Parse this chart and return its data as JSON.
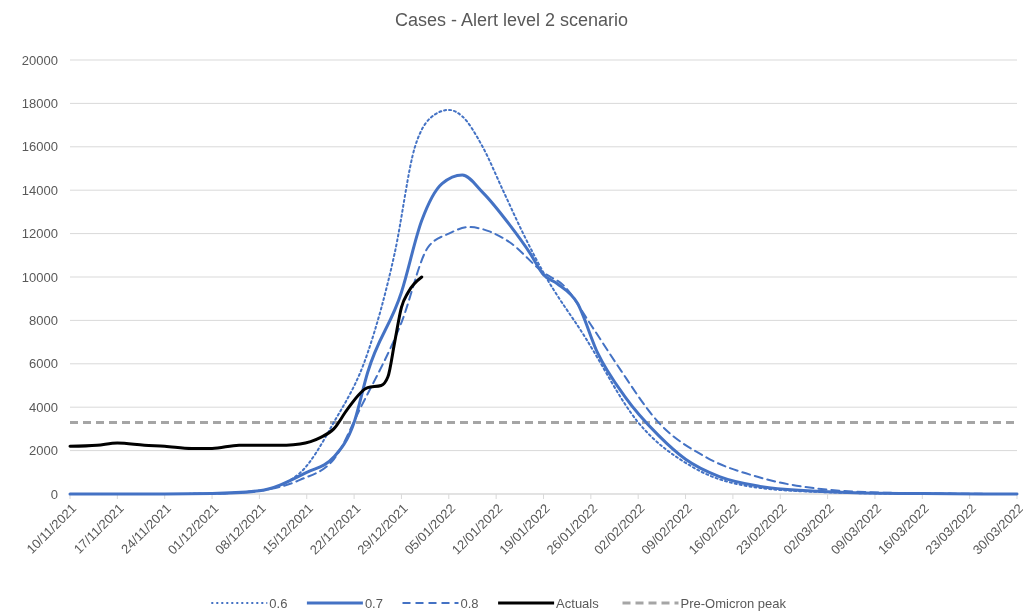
{
  "chart_data": {
    "type": "line",
    "title": "Cases - Alert level 2 scenario",
    "xlim": [
      "2021-11-10",
      "2022-03-30"
    ],
    "xticks": [
      {
        "value": "2021-11-10",
        "label": "10/11/2021"
      },
      {
        "value": "2021-11-17",
        "label": "17/11/2021"
      },
      {
        "value": "2021-11-24",
        "label": "24/11/2021"
      },
      {
        "value": "2021-12-01",
        "label": "01/12/2021"
      },
      {
        "value": "2021-12-08",
        "label": "08/12/2021"
      },
      {
        "value": "2021-12-15",
        "label": "15/12/2021"
      },
      {
        "value": "2021-12-22",
        "label": "22/12/2021"
      },
      {
        "value": "2021-12-29",
        "label": "29/12/2021"
      },
      {
        "value": "2022-01-05",
        "label": "05/01/2022"
      },
      {
        "value": "2022-01-12",
        "label": "12/01/2022"
      },
      {
        "value": "2022-01-19",
        "label": "19/01/2022"
      },
      {
        "value": "2022-01-26",
        "label": "26/01/2022"
      },
      {
        "value": "2022-02-02",
        "label": "02/02/2022"
      },
      {
        "value": "2022-02-09",
        "label": "09/02/2022"
      },
      {
        "value": "2022-02-16",
        "label": "16/02/2022"
      },
      {
        "value": "2022-02-23",
        "label": "23/02/2022"
      },
      {
        "value": "2022-03-02",
        "label": "02/03/2022"
      },
      {
        "value": "2022-03-09",
        "label": "09/03/2022"
      },
      {
        "value": "2022-03-16",
        "label": "16/03/2022"
      },
      {
        "value": "2022-03-23",
        "label": "23/03/2022"
      },
      {
        "value": "2022-03-30",
        "label": "30/03/2022"
      }
    ],
    "ylim": [
      0,
      20000
    ],
    "yticks": [
      0,
      2000,
      4000,
      6000,
      8000,
      10000,
      12000,
      14000,
      16000,
      18000,
      20000
    ],
    "grid": "y",
    "legend": "bottom",
    "series": [
      {
        "name": "0.6",
        "color": "#4472c4",
        "line_style": "dotted",
        "x": [
          "2021-11-12",
          "2021-11-24",
          "2021-12-01",
          "2021-12-08",
          "2021-12-14",
          "2021-12-19",
          "2021-12-24",
          "2021-12-28",
          "2021-12-31",
          "2022-01-03",
          "2022-01-05",
          "2022-01-07",
          "2022-01-10",
          "2022-01-13",
          "2022-01-16",
          "2022-01-19",
          "2022-01-25",
          "2022-02-02",
          "2022-02-10",
          "2022-02-20",
          "2022-03-02",
          "2022-03-12",
          "2022-03-28"
        ],
        "values": [
          0,
          0,
          20,
          150,
          970,
          3300,
          6500,
          11100,
          16000,
          17500,
          17700,
          17400,
          16000,
          14000,
          12000,
          10200,
          7300,
          3300,
          1250,
          280,
          80,
          20,
          0
        ]
      },
      {
        "name": "0.7",
        "color": "#4472c4",
        "line_style": "solid",
        "x": [
          "2021-11-10",
          "2021-11-24",
          "2021-12-01",
          "2021-12-08",
          "2021-12-15",
          "2021-12-19",
          "2021-12-22",
          "2021-12-24",
          "2021-12-29",
          "2022-01-01",
          "2022-01-04",
          "2022-01-07",
          "2022-01-10",
          "2022-01-14",
          "2022-01-17",
          "2022-01-19",
          "2022-01-21",
          "2022-01-24",
          "2022-01-27",
          "2022-01-31",
          "2022-02-05",
          "2022-02-09",
          "2022-02-14",
          "2022-02-20",
          "2022-02-27",
          "2022-03-06",
          "2022-03-16",
          "2022-03-30"
        ],
        "values": [
          0,
          0,
          20,
          150,
          1000,
          1700,
          3300,
          5600,
          9300,
          12600,
          14300,
          14700,
          13900,
          12400,
          11100,
          10100,
          9700,
          8800,
          6500,
          4500,
          2700,
          1600,
          800,
          350,
          150,
          60,
          20,
          0
        ]
      },
      {
        "name": "0.8",
        "color": "#4472c4",
        "line_style": "dashed",
        "x": [
          "2021-11-11",
          "2021-11-24",
          "2021-12-01",
          "2021-12-08",
          "2021-12-14",
          "2021-12-19",
          "2021-12-23",
          "2021-12-29",
          "2022-01-02",
          "2022-01-05",
          "2022-01-08",
          "2022-01-11",
          "2022-01-14",
          "2022-01-19",
          "2022-01-22",
          "2022-01-26",
          "2022-01-30",
          "2022-02-05",
          "2022-02-12",
          "2022-02-20",
          "2022-03-02",
          "2022-03-12",
          "2022-03-29"
        ],
        "values": [
          0,
          0,
          20,
          150,
          650,
          1600,
          4000,
          7900,
          11400,
          12000,
          12300,
          12100,
          11600,
          10200,
          9600,
          7800,
          5900,
          3300,
          1700,
          760,
          200,
          50,
          0
        ]
      },
      {
        "name": "Actuals",
        "color": "#000000",
        "line_style": "solid",
        "x": [
          "2021-11-10",
          "2021-11-14",
          "2021-11-17",
          "2021-11-21",
          "2021-11-24",
          "2021-11-28",
          "2021-12-01",
          "2021-12-05",
          "2021-12-08",
          "2021-12-12",
          "2021-12-14",
          "2021-12-17",
          "2021-12-19",
          "2021-12-21",
          "2021-12-24",
          "2021-12-26",
          "2021-12-27",
          "2021-12-28",
          "2021-12-29",
          "2021-12-30",
          "2022-01-01"
        ],
        "values": [
          2200,
          2250,
          2350,
          2250,
          2200,
          2100,
          2100,
          2250,
          2250,
          2250,
          2300,
          2600,
          3000,
          3900,
          4900,
          5000,
          5400,
          7000,
          8600,
          9300,
          10000
        ]
      }
    ],
    "ref_lines": [
      {
        "axis": "y",
        "value": 3300,
        "label": "Pre-Omicron peak",
        "color": "#a5a5a5",
        "line_style": "dashed"
      }
    ]
  }
}
